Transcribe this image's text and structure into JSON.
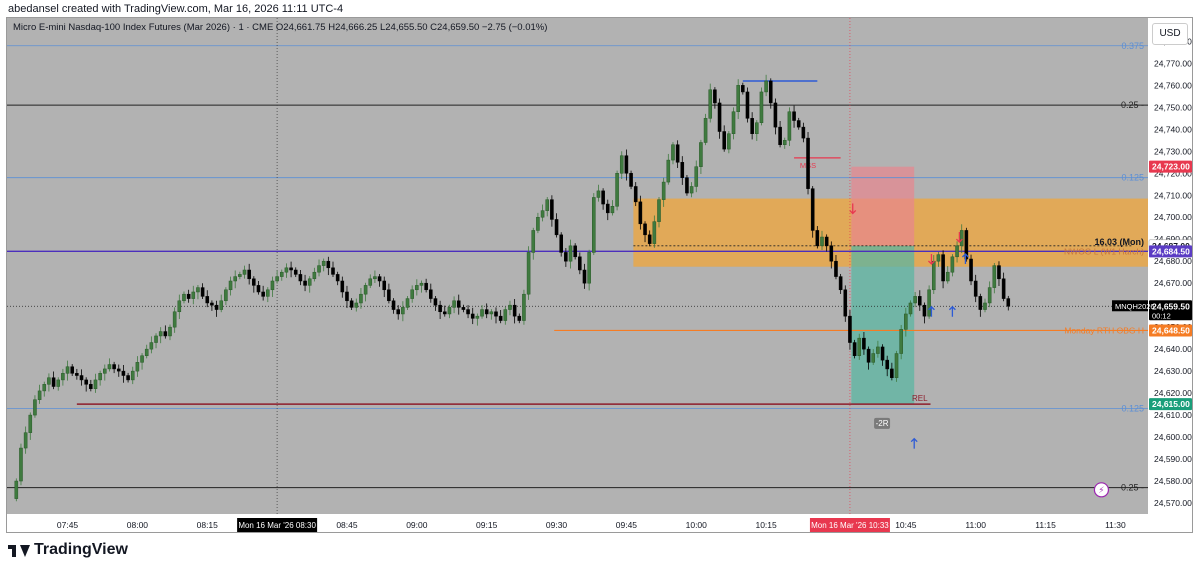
{
  "caption": "abedansel created with TradingView.com, Mar 16, 2026 11:11 UTC-4",
  "legend": "Micro E-mini Nasdaq-100 Index Futures (Mar 2026) · 1 · CME  O24,661.75  H24,666.25  L24,655.50  C24,659.50  −2.75 (−0.01%)",
  "currency_button": "USD",
  "brand": "TradingView",
  "colors": {
    "background": "#b2b2b2",
    "candle_up": "#3f7a3f",
    "candle_down": "#000000",
    "fvg_zone": "#f0a53a",
    "risk_zone": "#e8868f",
    "reward_zone": "#5bb5a2",
    "blue_level": "#2d5bd6",
    "purple_level": "#4b2fbd",
    "fib_line": "#5b8fd6",
    "rel_line": "#8e1c2b",
    "orange_line": "#f57c24"
  },
  "chart_data": {
    "type": "candlestick",
    "title": "Micro E-mini Nasdaq-100 Index Futures (Mar 2026)",
    "interval": "1",
    "exchange": "CME",
    "ohlc": {
      "open": "24,661.75",
      "high": "24,666.25",
      "low": "24,655.50",
      "close": "24,659.50",
      "change": "−2.75 (−0.01%)"
    },
    "ylim": [
      24565,
      24787
    ],
    "y_ticks": [
      "24,780.00",
      "24,770.00",
      "24,760.00",
      "24,750.00",
      "24,740.00",
      "24,730.00",
      "24,720.00",
      "24,710.00",
      "24,700.00",
      "24,690.00",
      "24,680.00",
      "24,670.00",
      "24,660.00",
      "24,650.00",
      "24,640.00",
      "24,630.00",
      "24,620.00",
      "24,610.00",
      "24,600.00",
      "24,590.00",
      "24,580.00",
      "24,570.00"
    ],
    "y_tick_values": [
      24780,
      24770,
      24760,
      24750,
      24740,
      24730,
      24720,
      24710,
      24700,
      24690,
      24680,
      24670,
      24660,
      24650,
      24640,
      24630,
      24620,
      24610,
      24600,
      24590,
      24580,
      24570
    ],
    "x_ticks": [
      "07:45",
      "08:00",
      "08:15",
      "08:45",
      "09:00",
      "09:15",
      "09:30",
      "09:45",
      "10:00",
      "10:15",
      "10:45",
      "11:00",
      "11:15",
      "11:30"
    ],
    "x_tick_minutes": [
      465,
      480,
      495,
      525,
      540,
      555,
      570,
      585,
      600,
      615,
      645,
      660,
      675,
      690
    ],
    "x_range_minutes": [
      452,
      697
    ],
    "candle_start_minute": 454,
    "candles_close": [
      24580,
      24595,
      24602,
      24610,
      24617,
      24621,
      24624,
      24627,
      24623,
      24626,
      24629,
      24632,
      24629,
      24628,
      24626,
      24624,
      24622,
      24626,
      24629,
      24631,
      24633,
      24631,
      24630,
      24628,
      24626,
      24630,
      24634,
      24637,
      24640,
      24643,
      24646,
      24648,
      24646,
      24650,
      24657,
      24662,
      24665,
      24663,
      24666,
      24668,
      24664,
      24661,
      24660,
      24658,
      24662,
      24667,
      24671,
      24673,
      24674,
      24676,
      24672,
      24669,
      24666,
      24664,
      24667,
      24671,
      24673,
      24675,
      24677,
      24676,
      24674,
      24671,
      24669,
      24672,
      24675,
      24678,
      24680,
      24677,
      24674,
      24671,
      24666,
      24662,
      24659,
      24661,
      24665,
      24669,
      24672,
      24673,
      24671,
      24667,
      24662,
      24658,
      24656,
      24659,
      24663,
      24667,
      24669,
      24670,
      24667,
      24663,
      24660,
      24657,
      24656,
      24659,
      24662,
      24659,
      24658,
      24656,
      24654,
      24655,
      24658,
      24656,
      24657,
      24655,
      24653,
      24658,
      24660,
      24655,
      24653,
      24665,
      24684,
      24694,
      24700,
      24703,
      24708,
      24699,
      24692,
      24684,
      24680,
      24687,
      24682,
      24676,
      24670,
      24684,
      24709,
      24712,
      24706,
      24702,
      24705,
      24720,
      24728,
      24720,
      24714,
      24707,
      24697,
      24692,
      24688,
      24698,
      24708,
      24716,
      24726,
      24733,
      24725,
      24718,
      24711,
      24714,
      24723,
      24734,
      24745,
      24758,
      24752,
      24739,
      24731,
      24738,
      24748,
      24760,
      24757,
      24745,
      24738,
      24743,
      24757,
      24762,
      24752,
      24741,
      24733,
      24735,
      24748,
      24744,
      24741,
      24736,
      24713,
      24694,
      24687,
      24691,
      24687,
      24680,
      24673,
      24667,
      24655,
      24643,
      24637,
      24645,
      24640,
      24634,
      24638,
      24641,
      24635,
      24631,
      24627,
      24638,
      24649,
      24656,
      24661,
      24664,
      24660,
      24655,
      24667,
      24680,
      24683,
      24671,
      24675,
      24682,
      24687,
      24694,
      24681,
      24671,
      24664,
      24658,
      24661,
      24668,
      24678,
      24672,
      24663,
      24659.5
    ],
    "levels": [
      {
        "name": "fib-0375",
        "label": "0.375",
        "value": 24778
      },
      {
        "name": "fib-025-top",
        "label": "0.25 -",
        "value": 24751
      },
      {
        "name": "fib-0125-top",
        "label": "0.125",
        "value": 24718
      },
      {
        "name": "fib-0125-bottom",
        "label": "0.125",
        "value": 24613
      },
      {
        "name": "fib-025-bottom",
        "label": "0.25 -",
        "value": 24577
      }
    ],
    "annotations": {
      "mss_label": "MSS",
      "rel_label": "REL",
      "ce_label": "16.03 (Mon)",
      "nwog_label": "NWOG L (W1 Harch)",
      "monday_label": "Monday RTH OBG H",
      "r_multiple": "-2R",
      "lightning": "⚡"
    },
    "price_tags": [
      {
        "text": "24,723.00",
        "value": 24723,
        "bg": "#e8384f"
      },
      {
        "text": "24,687.00",
        "value": 24687,
        "bg": "#ffffff",
        "fg": "#131722"
      },
      {
        "text": "24,684.50",
        "value": 24684.5,
        "bg": "#5b3cc4"
      },
      {
        "text": "24,659.50",
        "value": 24659.5,
        "bg": "#000000",
        "sub": "00:12"
      },
      {
        "text": "24,648.50",
        "value": 24648.5,
        "bg": "#f57c24"
      },
      {
        "text": "24,615.00",
        "value": 24615,
        "bg": "#1a9e7a"
      }
    ],
    "symbol_tag": "MNQH2026",
    "time_labels": [
      {
        "text": "Mon 16 Mar '26   08:30",
        "minute": 510,
        "bg": "#000000"
      },
      {
        "text": "Mon 16 Mar '26   10:33",
        "minute": 633,
        "bg": "#e8384f"
      }
    ]
  }
}
